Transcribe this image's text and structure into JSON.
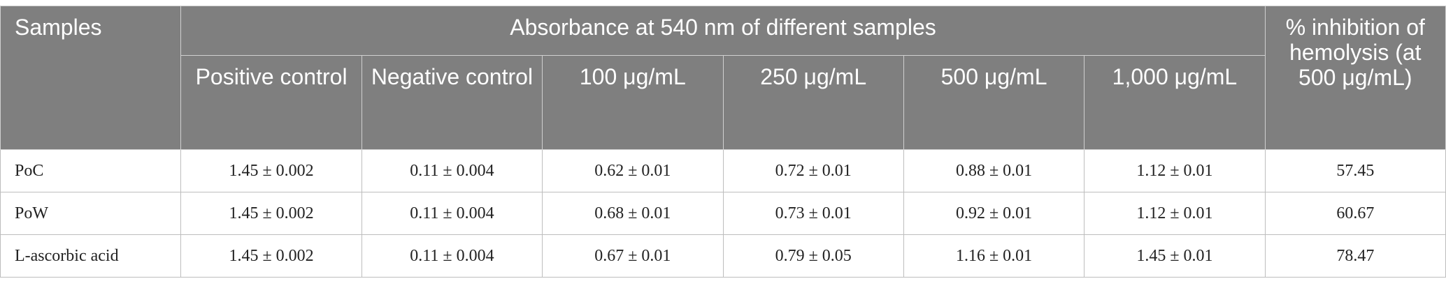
{
  "table": {
    "header": {
      "samples": "Samples",
      "group": "Absorbance at 540 nm of different samples",
      "columns": [
        "Positive control",
        "Negative control",
        "100 μg/mL",
        "250 μg/mL",
        "500 μg/mL",
        "1,000 μg/mL"
      ],
      "inhibition": "% inhibition of hemolysis (at 500 μg/mL)"
    },
    "rows": [
      [
        "PoC",
        "1.45 ± 0.002",
        "0.11 ± 0.004",
        "0.62 ± 0.01",
        "0.72 ± 0.01",
        "0.88 ± 0.01",
        "1.12 ± 0.01",
        "57.45"
      ],
      [
        "PoW",
        "1.45 ± 0.002",
        "0.11 ± 0.004",
        "0.68 ± 0.01",
        "0.73 ± 0.01",
        "0.92 ± 0.01",
        "1.12 ± 0.01",
        "60.67"
      ],
      [
        "L-ascorbic acid",
        "1.45 ± 0.002",
        "0.11 ± 0.004",
        "0.67 ± 0.01",
        "0.79 ± 0.05",
        "1.16 ± 0.01",
        "1.45 ± 0.01",
        "78.47"
      ]
    ]
  }
}
